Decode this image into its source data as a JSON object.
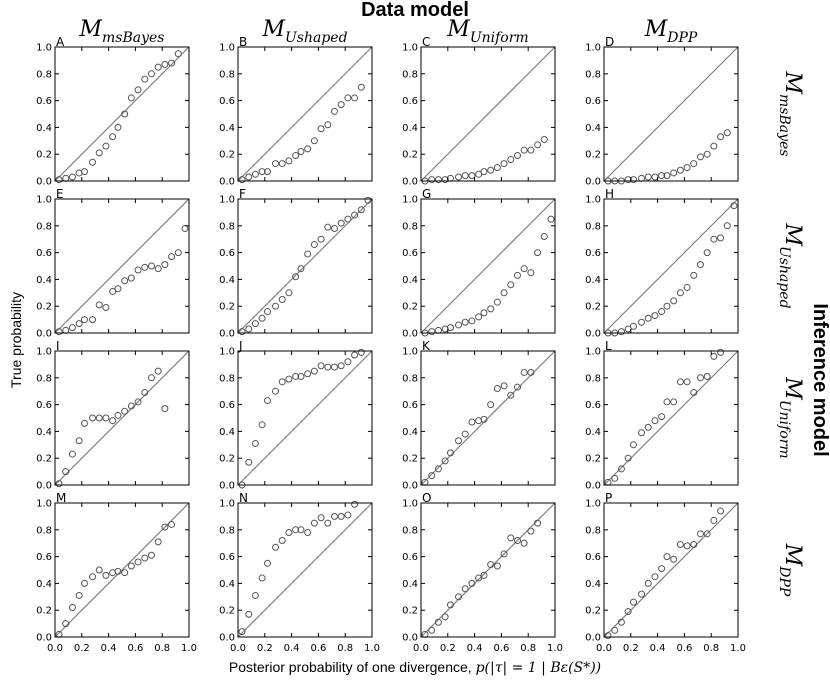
{
  "figure": {
    "top_title": "Data model",
    "side_title": "Inference model",
    "x_axis_label": "Posterior probability of one divergence, ",
    "x_axis_math": "p(|τ| = 1 | Bε(S*))",
    "y_axis_label": "True probability",
    "column_models": [
      {
        "base": "M",
        "sub": "msBayes"
      },
      {
        "base": "M",
        "sub": "Ushaped"
      },
      {
        "base": "M",
        "sub": "Uniform"
      },
      {
        "base": "M",
        "sub": "DPP"
      }
    ],
    "row_models": [
      {
        "base": "M",
        "sub": "msBayes"
      },
      {
        "base": "M",
        "sub": "Ushaped"
      },
      {
        "base": "M",
        "sub": "Uniform"
      },
      {
        "base": "M",
        "sub": "DPP"
      }
    ],
    "x_ticks": [
      "0.0",
      "0.2",
      "0.4",
      "0.6",
      "0.8",
      "1.0"
    ],
    "y_ticks": [
      "0.0",
      "0.2",
      "0.4",
      "0.6",
      "0.8",
      "1.0"
    ],
    "colors": {
      "marker_edge": "#555555",
      "diagonal": "#808080",
      "axes": "#000000"
    }
  },
  "chart_data": [
    {
      "type": "scatter",
      "panel": "A",
      "xlim": [
        0,
        1
      ],
      "ylim": [
        0,
        1
      ],
      "reference_line": "y = x",
      "x": [
        0.03,
        0.08,
        0.13,
        0.18,
        0.22,
        0.28,
        0.33,
        0.38,
        0.43,
        0.47,
        0.52,
        0.57,
        0.62,
        0.67,
        0.72,
        0.77,
        0.82,
        0.87,
        0.92
      ],
      "y": [
        0.01,
        0.02,
        0.03,
        0.06,
        0.07,
        0.14,
        0.21,
        0.26,
        0.33,
        0.4,
        0.5,
        0.62,
        0.68,
        0.76,
        0.8,
        0.85,
        0.87,
        0.88,
        0.95
      ]
    },
    {
      "type": "scatter",
      "panel": "B",
      "xlim": [
        0,
        1
      ],
      "ylim": [
        0,
        1
      ],
      "reference_line": "y = x",
      "x": [
        0.03,
        0.08,
        0.13,
        0.18,
        0.22,
        0.28,
        0.33,
        0.38,
        0.43,
        0.47,
        0.52,
        0.57,
        0.62,
        0.67,
        0.72,
        0.77,
        0.82,
        0.87,
        0.92
      ],
      "y": [
        0.01,
        0.03,
        0.05,
        0.07,
        0.07,
        0.13,
        0.13,
        0.15,
        0.19,
        0.22,
        0.24,
        0.3,
        0.39,
        0.42,
        0.52,
        0.57,
        0.62,
        0.62,
        0.7
      ]
    },
    {
      "type": "scatter",
      "panel": "C",
      "xlim": [
        0,
        1
      ],
      "ylim": [
        0,
        1
      ],
      "reference_line": "y = x",
      "x": [
        0.03,
        0.08,
        0.13,
        0.18,
        0.22,
        0.28,
        0.33,
        0.38,
        0.43,
        0.47,
        0.52,
        0.57,
        0.62,
        0.67,
        0.72,
        0.77,
        0.82,
        0.87,
        0.92
      ],
      "y": [
        0.0,
        0.01,
        0.01,
        0.01,
        0.02,
        0.03,
        0.04,
        0.04,
        0.05,
        0.07,
        0.08,
        0.1,
        0.13,
        0.16,
        0.19,
        0.23,
        0.23,
        0.27,
        0.31
      ]
    },
    {
      "type": "scatter",
      "panel": "D",
      "xlim": [
        0,
        1
      ],
      "ylim": [
        0,
        1
      ],
      "reference_line": "y = x",
      "x": [
        0.03,
        0.08,
        0.13,
        0.18,
        0.22,
        0.28,
        0.33,
        0.38,
        0.43,
        0.47,
        0.52,
        0.57,
        0.62,
        0.67,
        0.72,
        0.77,
        0.82,
        0.87,
        0.92
      ],
      "y": [
        0.0,
        0.0,
        0.0,
        0.01,
        0.01,
        0.02,
        0.03,
        0.03,
        0.04,
        0.04,
        0.06,
        0.08,
        0.1,
        0.13,
        0.18,
        0.2,
        0.26,
        0.33,
        0.36
      ]
    },
    {
      "type": "scatter",
      "panel": "E",
      "xlim": [
        0,
        1
      ],
      "ylim": [
        0,
        1
      ],
      "reference_line": "y = x",
      "x": [
        0.03,
        0.08,
        0.13,
        0.18,
        0.22,
        0.28,
        0.33,
        0.38,
        0.43,
        0.47,
        0.52,
        0.57,
        0.62,
        0.67,
        0.72,
        0.77,
        0.82,
        0.87,
        0.92,
        0.97
      ],
      "y": [
        0.01,
        0.02,
        0.04,
        0.07,
        0.1,
        0.1,
        0.21,
        0.19,
        0.31,
        0.33,
        0.39,
        0.41,
        0.47,
        0.49,
        0.5,
        0.48,
        0.51,
        0.57,
        0.6,
        0.78
      ]
    },
    {
      "type": "scatter",
      "panel": "F",
      "xlim": [
        0,
        1
      ],
      "ylim": [
        0,
        1
      ],
      "reference_line": "y = x",
      "x": [
        0.03,
        0.08,
        0.13,
        0.18,
        0.22,
        0.28,
        0.33,
        0.38,
        0.43,
        0.47,
        0.52,
        0.57,
        0.62,
        0.67,
        0.72,
        0.77,
        0.82,
        0.87,
        0.92,
        0.97
      ],
      "y": [
        0.01,
        0.03,
        0.07,
        0.11,
        0.16,
        0.2,
        0.25,
        0.3,
        0.42,
        0.48,
        0.59,
        0.66,
        0.7,
        0.79,
        0.78,
        0.82,
        0.85,
        0.88,
        0.92,
        0.99
      ]
    },
    {
      "type": "scatter",
      "panel": "G",
      "xlim": [
        0,
        1
      ],
      "ylim": [
        0,
        1
      ],
      "reference_line": "y = x",
      "x": [
        0.03,
        0.08,
        0.13,
        0.18,
        0.22,
        0.28,
        0.33,
        0.38,
        0.43,
        0.47,
        0.52,
        0.57,
        0.62,
        0.67,
        0.72,
        0.77,
        0.82,
        0.87,
        0.92,
        0.97
      ],
      "y": [
        0.0,
        0.01,
        0.02,
        0.03,
        0.04,
        0.06,
        0.08,
        0.09,
        0.12,
        0.15,
        0.18,
        0.23,
        0.3,
        0.36,
        0.43,
        0.48,
        0.45,
        0.6,
        0.72,
        0.85
      ]
    },
    {
      "type": "scatter",
      "panel": "H",
      "xlim": [
        0,
        1
      ],
      "ylim": [
        0,
        1
      ],
      "reference_line": "y = x",
      "x": [
        0.03,
        0.08,
        0.13,
        0.18,
        0.22,
        0.28,
        0.33,
        0.38,
        0.43,
        0.47,
        0.52,
        0.57,
        0.62,
        0.67,
        0.72,
        0.77,
        0.82,
        0.87,
        0.92,
        0.97
      ],
      "y": [
        0.0,
        0.0,
        0.01,
        0.03,
        0.05,
        0.08,
        0.11,
        0.13,
        0.16,
        0.2,
        0.24,
        0.3,
        0.34,
        0.43,
        0.51,
        0.6,
        0.7,
        0.71,
        0.8,
        0.95
      ]
    },
    {
      "type": "scatter",
      "panel": "I",
      "xlim": [
        0,
        1
      ],
      "ylim": [
        0,
        1
      ],
      "reference_line": "y = x",
      "x": [
        0.03,
        0.08,
        0.13,
        0.18,
        0.22,
        0.28,
        0.33,
        0.38,
        0.43,
        0.47,
        0.52,
        0.57,
        0.62,
        0.67,
        0.72,
        0.77,
        0.82
      ],
      "y": [
        0.01,
        0.1,
        0.23,
        0.33,
        0.46,
        0.5,
        0.5,
        0.5,
        0.48,
        0.52,
        0.55,
        0.59,
        0.62,
        0.69,
        0.8,
        0.85,
        0.57
      ]
    },
    {
      "type": "scatter",
      "panel": "J",
      "xlim": [
        0,
        1
      ],
      "ylim": [
        0,
        1
      ],
      "reference_line": "y = x",
      "x": [
        0.03,
        0.08,
        0.13,
        0.18,
        0.22,
        0.28,
        0.33,
        0.38,
        0.43,
        0.47,
        0.52,
        0.57,
        0.62,
        0.67,
        0.72,
        0.77,
        0.82,
        0.87,
        0.92
      ],
      "y": [
        0.0,
        0.17,
        0.31,
        0.45,
        0.63,
        0.7,
        0.77,
        0.79,
        0.81,
        0.81,
        0.83,
        0.85,
        0.89,
        0.88,
        0.88,
        0.89,
        0.92,
        0.97,
        0.99
      ]
    },
    {
      "type": "scatter",
      "panel": "K",
      "xlim": [
        0,
        1
      ],
      "ylim": [
        0,
        1
      ],
      "reference_line": "y = x",
      "x": [
        0.03,
        0.08,
        0.13,
        0.18,
        0.22,
        0.28,
        0.33,
        0.38,
        0.43,
        0.47,
        0.52,
        0.57,
        0.62,
        0.67,
        0.72,
        0.77,
        0.82
      ],
      "y": [
        0.02,
        0.07,
        0.12,
        0.18,
        0.24,
        0.33,
        0.38,
        0.47,
        0.48,
        0.49,
        0.6,
        0.72,
        0.74,
        0.67,
        0.73,
        0.84,
        0.84
      ]
    },
    {
      "type": "scatter",
      "panel": "L",
      "xlim": [
        0,
        1
      ],
      "ylim": [
        0,
        1
      ],
      "reference_line": "y = x",
      "x": [
        0.03,
        0.08,
        0.13,
        0.18,
        0.22,
        0.28,
        0.33,
        0.38,
        0.43,
        0.47,
        0.52,
        0.57,
        0.62,
        0.67,
        0.72,
        0.77,
        0.82,
        0.87
      ],
      "y": [
        0.02,
        0.05,
        0.12,
        0.2,
        0.3,
        0.39,
        0.43,
        0.48,
        0.51,
        0.62,
        0.62,
        0.77,
        0.77,
        0.69,
        0.8,
        0.81,
        0.96,
        0.99
      ]
    },
    {
      "type": "scatter",
      "panel": "M",
      "xlim": [
        0,
        1
      ],
      "ylim": [
        0,
        1
      ],
      "reference_line": "y = x",
      "x": [
        0.03,
        0.08,
        0.13,
        0.18,
        0.22,
        0.28,
        0.33,
        0.38,
        0.43,
        0.47,
        0.52,
        0.57,
        0.62,
        0.67,
        0.72,
        0.77,
        0.82,
        0.87
      ],
      "y": [
        0.02,
        0.1,
        0.22,
        0.31,
        0.4,
        0.45,
        0.5,
        0.46,
        0.48,
        0.49,
        0.48,
        0.53,
        0.56,
        0.59,
        0.61,
        0.71,
        0.82,
        0.84
      ]
    },
    {
      "type": "scatter",
      "panel": "N",
      "xlim": [
        0,
        1
      ],
      "ylim": [
        0,
        1
      ],
      "reference_line": "y = x",
      "x": [
        0.03,
        0.08,
        0.13,
        0.18,
        0.22,
        0.28,
        0.33,
        0.38,
        0.43,
        0.47,
        0.52,
        0.57,
        0.62,
        0.67,
        0.72,
        0.77,
        0.82,
        0.87
      ],
      "y": [
        0.04,
        0.17,
        0.31,
        0.44,
        0.55,
        0.67,
        0.72,
        0.78,
        0.8,
        0.8,
        0.78,
        0.85,
        0.89,
        0.85,
        0.9,
        0.9,
        0.91,
        0.99
      ]
    },
    {
      "type": "scatter",
      "panel": "O",
      "xlim": [
        0,
        1
      ],
      "ylim": [
        0,
        1
      ],
      "reference_line": "y = x",
      "x": [
        0.03,
        0.08,
        0.13,
        0.18,
        0.22,
        0.28,
        0.33,
        0.38,
        0.43,
        0.47,
        0.52,
        0.57,
        0.62,
        0.67,
        0.72,
        0.77,
        0.82,
        0.87
      ],
      "y": [
        0.02,
        0.05,
        0.11,
        0.15,
        0.24,
        0.3,
        0.36,
        0.4,
        0.44,
        0.46,
        0.54,
        0.53,
        0.62,
        0.74,
        0.72,
        0.7,
        0.79,
        0.85
      ]
    },
    {
      "type": "scatter",
      "panel": "P",
      "xlim": [
        0,
        1
      ],
      "ylim": [
        0,
        1
      ],
      "reference_line": "y = x",
      "x": [
        0.03,
        0.08,
        0.13,
        0.18,
        0.22,
        0.28,
        0.33,
        0.38,
        0.43,
        0.47,
        0.52,
        0.57,
        0.62,
        0.67,
        0.72,
        0.77,
        0.82,
        0.87
      ],
      "y": [
        0.01,
        0.05,
        0.11,
        0.19,
        0.26,
        0.32,
        0.4,
        0.45,
        0.51,
        0.6,
        0.58,
        0.69,
        0.68,
        0.69,
        0.77,
        0.77,
        0.87,
        0.94
      ]
    }
  ]
}
